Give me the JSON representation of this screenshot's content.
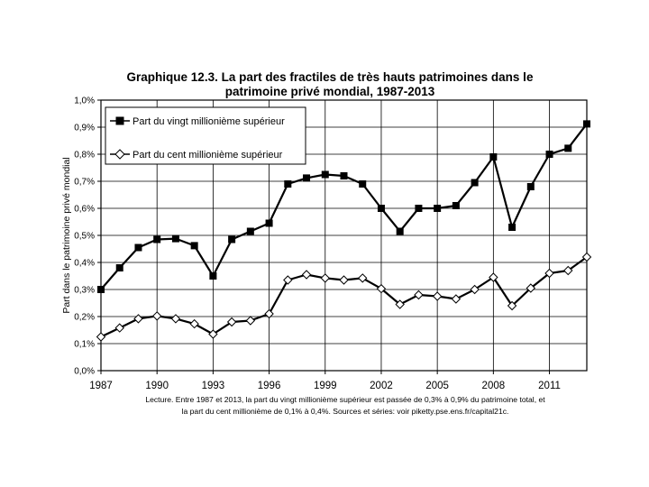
{
  "chart_data": {
    "type": "line",
    "title_line1": "Graphique 12.3. La part des fractiles de très hauts patrimoines dans le",
    "title_line2": "patrimoine privé mondial, 1987-2013",
    "ylabel": "Part dans le patrimoine privé mondial",
    "xlabel": "",
    "xlim": [
      1987,
      2013
    ],
    "ylim": [
      0,
      0.01
    ],
    "x_ticks": [
      "1987",
      "1990",
      "1993",
      "1996",
      "1999",
      "2002",
      "2005",
      "2008",
      "2011"
    ],
    "y_ticks": [
      "0,0%",
      "0,1%",
      "0,2%",
      "0,3%",
      "0,4%",
      "0,5%",
      "0,6%",
      "0,7%",
      "0,8%",
      "0,9%",
      "1,0%"
    ],
    "grid": true,
    "legend_position": "top-left",
    "x": [
      1987,
      1988,
      1989,
      1990,
      1991,
      1992,
      1993,
      1994,
      1995,
      1996,
      1997,
      1998,
      1999,
      2000,
      2001,
      2002,
      2003,
      2004,
      2005,
      2006,
      2007,
      2008,
      2009,
      2010,
      2011,
      2012,
      2013
    ],
    "series": [
      {
        "name": "Part du vingt millionième supérieur",
        "marker": "filled-square",
        "values": [
          0.003,
          0.0038,
          0.00455,
          0.00485,
          0.00488,
          0.00462,
          0.0035,
          0.00485,
          0.00515,
          0.00545,
          0.0069,
          0.00712,
          0.00725,
          0.0072,
          0.0069,
          0.006,
          0.00515,
          0.006,
          0.006,
          0.0061,
          0.00695,
          0.0079,
          0.0053,
          0.0068,
          0.008,
          0.00822,
          0.00912
        ]
      },
      {
        "name": "Part du cent millionième supérieur",
        "marker": "open-diamond",
        "values": [
          0.00125,
          0.00158,
          0.00192,
          0.00202,
          0.00192,
          0.00173,
          0.00135,
          0.0018,
          0.00185,
          0.0021,
          0.00335,
          0.00355,
          0.00342,
          0.00335,
          0.00342,
          0.00303,
          0.00245,
          0.0028,
          0.00275,
          0.00265,
          0.003,
          0.00345,
          0.0024,
          0.00305,
          0.0036,
          0.0037,
          0.0042
        ]
      }
    ]
  },
  "footnote_line1": "Lecture. Entre 1987 et 2013, la part du vingt millionième supérieur est passée de 0,3% à 0,9% du patrimoine total, et",
  "footnote_line2": "la part du cent millionième de 0,1% à 0,4%. Sources et séries: voir piketty.pse.ens.fr/capital21c.",
  "colors": {
    "line": "#000000",
    "grid": "#000000",
    "background": "#ffffff"
  }
}
